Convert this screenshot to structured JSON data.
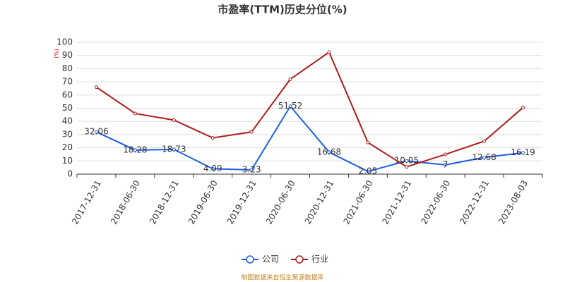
{
  "chart_data": {
    "type": "line",
    "title": "市盈率(TTM)历史分位(%)",
    "y_label": "(%)",
    "source": "制图数据来自恒生聚源数据库",
    "categories": [
      "2017-12-31",
      "2018-06-30",
      "2018-12-31",
      "2019-06-30",
      "2019-12-31",
      "2020-06-30",
      "2020-12-31",
      "2021-06-30",
      "2021-12-31",
      "2022-06-30",
      "2022-12-31",
      "2023-08-03"
    ],
    "series": [
      {
        "name": "公司",
        "color": "#1a5ee8",
        "values": [
          32.06,
          18.28,
          18.73,
          4.09,
          3.23,
          51.52,
          16.68,
          2.05,
          10.05,
          7,
          12.68,
          16.19
        ],
        "show_labels": true
      },
      {
        "name": "行业",
        "color": "#b01c1c",
        "values": [
          66,
          46,
          41,
          27.5,
          32,
          72,
          92.5,
          24,
          5.5,
          15,
          25,
          50.5
        ],
        "show_labels": false
      }
    ],
    "ylim": [
      0,
      100
    ],
    "yticks": [
      0,
      10,
      20,
      30,
      40,
      50,
      60,
      70,
      80,
      90,
      100
    ],
    "grid": true
  }
}
